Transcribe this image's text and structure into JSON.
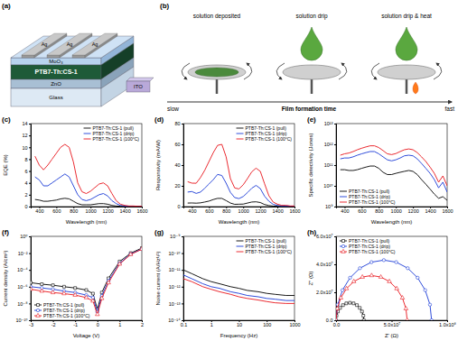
{
  "schematic": {
    "label": "(a)",
    "layers": [
      "MoO₃",
      "PTB7-Th:CS-1",
      "ZnO",
      "Glass"
    ],
    "electrodes": [
      "Ag",
      "Ag",
      "Ag"
    ],
    "contact": "ITO"
  },
  "process": {
    "label": "(b)",
    "steps": [
      "solution deposited",
      "solution drip",
      "solution drip & heat"
    ],
    "axis": {
      "start": "slow",
      "title": "Film formation time",
      "end": "fast"
    }
  },
  "chart_data": [
    {
      "type": "line",
      "title": "(c)",
      "xlabel": "Wavelength (nm)",
      "ylabel": "EQE (%)",
      "x": [
        350,
        400,
        450,
        500,
        550,
        600,
        650,
        700,
        750,
        800,
        850,
        900,
        950,
        1000,
        1050,
        1100,
        1150,
        1200,
        1250,
        1300,
        1350,
        1400,
        1450,
        1500,
        1550,
        1600
      ],
      "xlim": [
        300,
        1600
      ],
      "xticks": [
        400,
        600,
        800,
        1000,
        1200,
        1400,
        1600
      ],
      "ylim": [
        0,
        14
      ],
      "yticks": [
        0,
        2,
        4,
        6,
        8,
        10,
        12,
        14
      ],
      "legend": "upper right",
      "series": [
        {
          "name": "PTB7-Th:CS-1 (pull)",
          "color": "#000000",
          "values": [
            1.2,
            1.1,
            0.9,
            0.9,
            1,
            1.1,
            1.3,
            1.4,
            1.3,
            0.9,
            0.5,
            0.3,
            0.3,
            0.3,
            0.4,
            0.5,
            0.5,
            0.4,
            0.2,
            0.1,
            0.05,
            0.03,
            0.02,
            0.02,
            0.01,
            0.01
          ]
        },
        {
          "name": "PTB7-Th:CS-1 (drip)",
          "color": "#1a3ad6",
          "values": [
            5,
            4.5,
            3.5,
            3.5,
            4,
            4.5,
            5,
            5.5,
            5,
            3.5,
            2,
            1.2,
            1,
            1.2,
            1.6,
            2,
            2.2,
            1.8,
            1,
            0.5,
            0.2,
            0.1,
            0.05,
            0.05,
            0.03,
            0.03
          ]
        },
        {
          "name": "PTB7-Th:CS-1 (100°C)",
          "color": "#e8141b",
          "values": [
            8.5,
            7,
            6.2,
            7,
            8,
            9,
            10,
            10.5,
            10,
            7.5,
            4,
            2.5,
            2.2,
            2.6,
            3.2,
            3.8,
            4,
            3.5,
            2.2,
            1,
            0.4,
            0.2,
            0.1,
            0.1,
            0.05,
            0.05
          ]
        }
      ]
    },
    {
      "type": "line",
      "title": "(d)",
      "xlabel": "Wavelength (nm)",
      "ylabel": "Responsivity (mA/W)",
      "x": [
        350,
        400,
        450,
        500,
        550,
        600,
        650,
        700,
        750,
        800,
        850,
        900,
        950,
        1000,
        1050,
        1100,
        1150,
        1200,
        1250,
        1300,
        1350,
        1400,
        1450,
        1500,
        1550,
        1600
      ],
      "xlim": [
        300,
        1600
      ],
      "xticks": [
        400,
        600,
        800,
        1000,
        1200,
        1400,
        1600
      ],
      "ylim": [
        0,
        80
      ],
      "yticks": [
        0,
        20,
        40,
        60,
        80
      ],
      "legend": "upper right",
      "series": [
        {
          "name": "PTB7-Th:CS-1 (pull)",
          "color": "#000000",
          "values": [
            3.4,
            3.5,
            3.3,
            3.6,
            4.4,
            5.3,
            6.8,
            7.9,
            7.9,
            5.8,
            3.4,
            2.2,
            2.3,
            2.4,
            3.4,
            4.4,
            4.6,
            3.9,
            2,
            1,
            0.5,
            0.3,
            0.2,
            0.2,
            0.1,
            0.1
          ]
        },
        {
          "name": "PTB7-Th:CS-1 (drip)",
          "color": "#1a3ad6",
          "values": [
            14,
            14.5,
            12.7,
            14,
            17.7,
            21.8,
            26,
            31,
            30,
            22.6,
            13.7,
            8.7,
            7.7,
            9.7,
            13.5,
            17.7,
            20.4,
            17.4,
            10,
            5.2,
            2.2,
            1.1,
            0.6,
            0.6,
            0.4,
            0.4
          ]
        },
        {
          "name": "PTB7-Th:CS-1 (100°C)",
          "color": "#e8141b",
          "values": [
            24,
            22.6,
            22.5,
            28,
            35,
            43.5,
            52,
            59,
            60,
            48,
            27,
            18,
            17,
            21,
            27,
            33.5,
            37,
            34,
            22,
            10.5,
            4.4,
            2.3,
            1.2,
            1.2,
            0.6,
            0.6
          ]
        }
      ]
    },
    {
      "type": "line",
      "title": "(e)",
      "xlabel": "Wavelength (nm)",
      "ylabel": "Specific detectivity (Jones)",
      "log": "y",
      "x": [
        350,
        400,
        450,
        500,
        550,
        600,
        650,
        700,
        750,
        800,
        850,
        900,
        950,
        1000,
        1050,
        1100,
        1150,
        1200,
        1250,
        1300,
        1350,
        1400,
        1450,
        1500,
        1550,
        1600
      ],
      "xlim": [
        300,
        1600
      ],
      "xticks": [
        400,
        600,
        800,
        1000,
        1200,
        1400,
        1600
      ],
      "ylim": [
        1000000000.0,
        10000000000000.0
      ],
      "yticks": [
        {
          "value": 1000000000.0,
          "label": "10⁹"
        },
        {
          "value": 10000000000.0,
          "label": "10¹⁰"
        },
        {
          "value": 100000000000.0,
          "label": "10¹¹"
        },
        {
          "value": 1000000000000.0,
          "label": "10¹²"
        },
        {
          "value": 10000000000000.0,
          "label": "10¹³"
        }
      ],
      "legend": "lower left",
      "series": [
        {
          "name": "PTB7-Th:CS-1 (pull)",
          "color": "#000000",
          "values": [
            60000000000.0,
            60000000000.0,
            55000000000.0,
            55000000000.0,
            60000000000.0,
            70000000000.0,
            80000000000.0,
            90000000000.0,
            90000000000.0,
            70000000000.0,
            45000000000.0,
            35000000000.0,
            35000000000.0,
            40000000000.0,
            45000000000.0,
            50000000000.0,
            55000000000.0,
            50000000000.0,
            35000000000.0,
            20000000000.0,
            12000000000.0,
            7000000000.0,
            4000000000.0,
            2500000000.0,
            3000000000.0,
            2000000000.0
          ]
        },
        {
          "name": "PTB7-Th:CS-1 (drip)",
          "color": "#1a3ad6",
          "values": [
            200000000000.0,
            220000000000.0,
            220000000000.0,
            250000000000.0,
            300000000000.0,
            350000000000.0,
            400000000000.0,
            450000000000.0,
            450000000000.0,
            350000000000.0,
            250000000000.0,
            180000000000.0,
            160000000000.0,
            180000000000.0,
            220000000000.0,
            280000000000.0,
            300000000000.0,
            280000000000.0,
            200000000000.0,
            120000000000.0,
            70000000000.0,
            40000000000.0,
            20000000000.0,
            8000000000.0,
            15000000000.0,
            5000000000.0
          ]
        },
        {
          "name": "PTB7-Th:CS-1 (100°C)",
          "color": "#e8141b",
          "values": [
            300000000000.0,
            350000000000.0,
            380000000000.0,
            450000000000.0,
            550000000000.0,
            650000000000.0,
            750000000000.0,
            850000000000.0,
            850000000000.0,
            700000000000.0,
            500000000000.0,
            350000000000.0,
            320000000000.0,
            360000000000.0,
            450000000000.0,
            550000000000.0,
            600000000000.0,
            550000000000.0,
            400000000000.0,
            250000000000.0,
            150000000000.0,
            80000000000.0,
            40000000000.0,
            15000000000.0,
            30000000000.0,
            10000000000.0
          ]
        }
      ]
    },
    {
      "type": "line",
      "title": "(f)",
      "xlabel": "Voltage (V)",
      "ylabel": "Current density (A/cm²)",
      "log": "y",
      "x": [
        -3,
        -2.5,
        -2,
        -1.5,
        -1,
        -0.5,
        -0.2,
        0,
        0.2,
        0.5,
        1,
        1.5,
        2
      ],
      "xlim": [
        -3,
        2
      ],
      "xticks": [
        -3,
        -2,
        -1,
        0,
        1,
        2
      ],
      "ylim": [
        1e-10,
        1
      ],
      "yticks": [
        {
          "value": 1e-10,
          "label": "10⁻¹⁰"
        },
        {
          "value": 1e-08,
          "label": "10⁻⁸"
        },
        {
          "value": 1e-06,
          "label": "10⁻⁶"
        },
        {
          "value": 0.0001,
          "label": "10⁻⁴"
        },
        {
          "value": 0.01,
          "label": "10⁻²"
        },
        {
          "value": 1,
          "label": "10⁰"
        }
      ],
      "legend": "lower left",
      "series": [
        {
          "name": "PTB7-Th:CS-1 (pull)",
          "color": "#000000",
          "marker": "square",
          "values": [
            3e-06,
            2e-06,
            1.5e-06,
            1e-06,
            7e-07,
            4e-07,
            1.5e-07,
            2e-09,
            2e-07,
            1e-05,
            0.001,
            0.01,
            0.04
          ]
        },
        {
          "name": "PTB7-Th:CS-1 (drip)",
          "color": "#1a3ad6",
          "marker": "circle",
          "values": [
            1e-06,
            7e-07,
            5e-07,
            3e-07,
            2e-07,
            1e-07,
            5e-08,
            1e-09,
            8e-08,
            5e-06,
            0.0006,
            0.008,
            0.03
          ]
        },
        {
          "name": "PTB7-Th:CS-1 (100°C)",
          "color": "#e8141b",
          "marker": "triangle",
          "values": [
            5e-07,
            3e-07,
            2e-07,
            1.5e-07,
            1e-07,
            5e-08,
            2e-08,
            5e-10,
            4e-08,
            3e-06,
            0.0005,
            0.007,
            0.03
          ]
        }
      ]
    },
    {
      "type": "line",
      "title": "(g)",
      "xlabel": "Frequency (Hz)",
      "ylabel": "Noise current (A/Hz¹/²)",
      "log": true,
      "x": [
        0.1,
        0.2,
        0.5,
        1,
        2,
        5,
        10,
        20,
        50,
        100,
        200,
        500,
        1000
      ],
      "xlim": [
        0.1,
        1000
      ],
      "xticks": [
        0.1,
        1,
        10,
        100,
        1000
      ],
      "ylim": [
        1e-14,
        1e-09
      ],
      "yticks": [
        {
          "value": 1e-14,
          "label": "10⁻¹⁴"
        },
        {
          "value": 1e-13,
          "label": "10⁻¹³"
        },
        {
          "value": 1e-12,
          "label": "10⁻¹²"
        },
        {
          "value": 1e-11,
          "label": "10⁻¹¹"
        },
        {
          "value": 1e-10,
          "label": "10⁻¹⁰"
        },
        {
          "value": 1e-09,
          "label": "10⁻⁹"
        }
      ],
      "legend": "upper right",
      "series": [
        {
          "name": "PTB7-Th:CS-1 (pull)",
          "color": "#000000",
          "values": [
            1e-11,
            6e-12,
            3e-12,
            2e-12,
            1.5e-12,
            1e-12,
            8e-13,
            6e-13,
            5e-13,
            4e-13,
            3.5e-13,
            3e-13,
            3e-13
          ]
        },
        {
          "name": "PTB7-Th:CS-1 (drip)",
          "color": "#1a3ad6",
          "values": [
            5e-12,
            3e-12,
            1.5e-12,
            1e-12,
            8e-13,
            5e-13,
            4e-13,
            3e-13,
            2.5e-13,
            2e-13,
            1.8e-13,
            1.5e-13,
            1.5e-13
          ]
        },
        {
          "name": "PTB7-Th:CS-1 (100°C)",
          "color": "#e8141b",
          "values": [
            3e-12,
            2e-12,
            1e-12,
            7e-13,
            5e-13,
            3.5e-13,
            2.5e-13,
            2e-13,
            1.6e-13,
            1.3e-13,
            1.1e-13,
            1e-13,
            1e-13
          ]
        }
      ]
    },
    {
      "type": "line",
      "title": "(h)",
      "xlabel": "Z' (Ω)",
      "ylabel": "Z'' (Ω)",
      "xlim": [
        0,
        100000000.0
      ],
      "xticks": [
        {
          "value": 0,
          "label": "0.0"
        },
        {
          "value": 50000000.0,
          "label": "5.0x10⁷"
        },
        {
          "value": 100000000.0,
          "label": "1.0x10⁸"
        }
      ],
      "ylim": [
        0,
        60000000.0
      ],
      "yticks": [
        {
          "value": 0,
          "label": "0.0"
        },
        {
          "value": 20000000.0,
          "label": "2.0x10⁷"
        },
        {
          "value": 40000000.0,
          "label": "4.0x10⁷"
        },
        {
          "value": 60000000.0,
          "label": "6.0x10⁷"
        }
      ],
      "legend": "upper left",
      "series": [
        {
          "name": "PTB7-Th:CS-1 (pull)",
          "color": "#000000",
          "marker": "square",
          "x": [
            0,
            425000.0,
            1675000.0,
            3660000.0,
            6250000.0,
            9260000.0,
            12500000.0,
            15740000.0,
            18750000.0,
            21340000.0,
            23330000.0,
            24580000.0,
            25000000.0
          ],
          "values": [
            0,
            3240000.0,
            6250000.0,
            8840000.0,
            10825000.0,
            12075000.0,
            12500000.0,
            12075000.0,
            10825000.0,
            8840000.0,
            6250000.0,
            3240000.0,
            0
          ]
        },
        {
          "name": "PTB7-Th:CS-1 (drip)",
          "color": "#1a3ad6",
          "marker": "circle",
          "x": [
            0,
            1460000.0,
            5760000.0,
            12600000.0,
            21500000.0,
            31860000.0,
            43000000.0,
            54140000.0,
            64500000.0,
            73400000.0,
            80240000.0,
            84540000.0,
            86000000.0
          ],
          "values": [
            0,
            11140000.0,
            21500000.0,
            30400000.0,
            37240000.0,
            41540000.0,
            43000000.0,
            41540000.0,
            37240000.0,
            30400000.0,
            21500000.0,
            11140000.0,
            0
          ]
        },
        {
          "name": "PTB7-Th:CS-1 (100°C)",
          "color": "#e8141b",
          "marker": "triangle",
          "x": [
            0,
            1090000.0,
            4290000.0,
            9380000.0,
            16000000.0,
            23710000.0,
            32000000.0,
            40290000.0,
            48000000.0,
            54620000.0,
            59710000.0,
            62910000.0,
            64000000.0
          ],
          "values": [
            0,
            8290000.0,
            16000000.0,
            22620000.0,
            27710000.0,
            30910000.0,
            32000000.0,
            30910000.0,
            27710000.0,
            22620000.0,
            16000000.0,
            8290000.0,
            0
          ]
        }
      ]
    }
  ]
}
